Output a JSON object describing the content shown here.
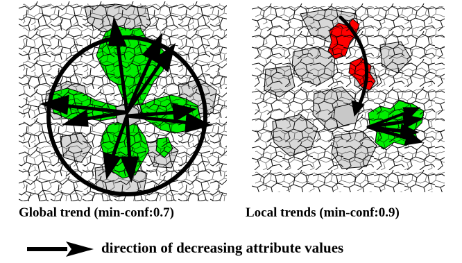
{
  "maps": [
    {
      "caption": "Global trend (min-conf:0.7)"
    },
    {
      "caption": "Local trends (min-conf:0.9)"
    }
  ],
  "legend": {
    "text": "direction of decreasing attribute values"
  },
  "colors": {
    "highlight_region": "#00ee00",
    "source_region": "#ff0000",
    "neighbor_region": "#d8d8d8",
    "boundary": "#000000",
    "arrow": "#000000"
  }
}
